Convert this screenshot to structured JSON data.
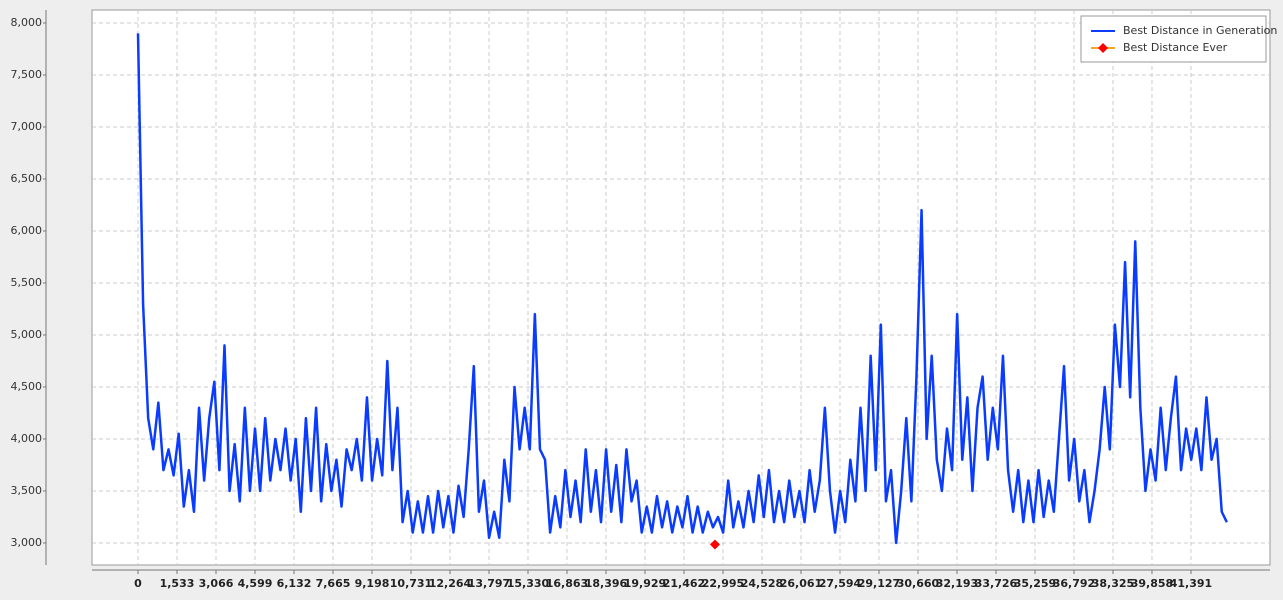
{
  "chart_data": {
    "type": "line",
    "x": [
      0,
      200,
      400,
      600,
      800,
      1000,
      1200,
      1400,
      1600,
      1800,
      2000,
      2200,
      2400,
      2600,
      2800,
      3000,
      3200,
      3400,
      3600,
      3800,
      4000,
      4200,
      4400,
      4600,
      4800,
      5000,
      5200,
      5400,
      5600,
      5800,
      6000,
      6200,
      6400,
      6600,
      6800,
      7000,
      7200,
      7400,
      7600,
      7800,
      8000,
      8200,
      8400,
      8600,
      8800,
      9000,
      9200,
      9400,
      9600,
      9800,
      10000,
      10200,
      10400,
      10600,
      10800,
      11000,
      11200,
      11400,
      11600,
      11800,
      12000,
      12200,
      12400,
      12600,
      12800,
      13000,
      13200,
      13400,
      13600,
      13800,
      14000,
      14200,
      14400,
      14600,
      14800,
      15000,
      15200,
      15400,
      15600,
      15800,
      16000,
      16200,
      16400,
      16600,
      16800,
      17000,
      17200,
      17400,
      17600,
      17800,
      18000,
      18200,
      18400,
      18600,
      18800,
      19000,
      19200,
      19400,
      19600,
      19800,
      20000,
      20200,
      20400,
      20600,
      20800,
      21000,
      21200,
      21400,
      21600,
      21800,
      22000,
      22200,
      22400,
      22600,
      22800,
      23000,
      23200,
      23400,
      23600,
      23800,
      24000,
      24200,
      24400,
      24600,
      24800,
      25000,
      25200,
      25400,
      25600,
      25800,
      26000,
      26200,
      26400,
      26600,
      26800,
      27000,
      27200,
      27400,
      27600,
      27800,
      28000,
      28200,
      28400,
      28600,
      28800,
      29000,
      29200,
      29400,
      29600,
      29800,
      30000,
      30200,
      30400,
      30600,
      30800,
      31000,
      31200,
      31400,
      31600,
      31800,
      32000,
      32200,
      32400,
      32600,
      32800,
      33000,
      33200,
      33400,
      33600,
      33800,
      34000,
      34200,
      34400,
      34600,
      34800,
      35000,
      35200,
      35400,
      35600,
      35800,
      36000,
      36200,
      36400,
      36600,
      36800,
      37000,
      37200,
      37400,
      37600,
      37800,
      38000,
      38200,
      38400,
      38600,
      38800,
      39000,
      39200,
      39400,
      39600,
      39800,
      40000,
      40200,
      40400,
      40600,
      40800,
      41000,
      41200,
      41400,
      41600,
      41800,
      42000,
      42200,
      42400,
      42600,
      42800
    ],
    "series": [
      {
        "name": "Best Distance in Generation",
        "color": "#0a3cff",
        "values": [
          7900,
          5300,
          4200,
          3900,
          4350,
          3700,
          3900,
          3650,
          4050,
          3350,
          3700,
          3300,
          4300,
          3600,
          4200,
          4550,
          3700,
          4900,
          3500,
          3950,
          3400,
          4300,
          3500,
          4100,
          3500,
          4200,
          3600,
          4000,
          3700,
          4100,
          3600,
          4000,
          3300,
          4200,
          3500,
          4300,
          3400,
          3950,
          3500,
          3800,
          3350,
          3900,
          3700,
          4000,
          3600,
          4400,
          3600,
          4000,
          3650,
          4750,
          3700,
          4300,
          3200,
          3500,
          3100,
          3400,
          3100,
          3450,
          3100,
          3500,
          3150,
          3450,
          3100,
          3550,
          3250,
          3900,
          4700,
          3300,
          3600,
          3050,
          3300,
          3050,
          3800,
          3400,
          4500,
          3900,
          4300,
          3900,
          5200,
          3900,
          3800,
          3100,
          3450,
          3150,
          3700,
          3250,
          3600,
          3200,
          3900,
          3300,
          3700,
          3200,
          3900,
          3300,
          3750,
          3200,
          3900,
          3400,
          3600,
          3100,
          3350,
          3100,
          3450,
          3150,
          3400,
          3100,
          3350,
          3150,
          3450,
          3100,
          3350,
          3100,
          3300,
          3150,
          3250,
          3100,
          3600,
          3150,
          3400,
          3150,
          3500,
          3200,
          3650,
          3250,
          3700,
          3200,
          3500,
          3200,
          3600,
          3250,
          3500,
          3200,
          3700,
          3300,
          3600,
          4300,
          3500,
          3100,
          3500,
          3200,
          3800,
          3400,
          4300,
          3500,
          4800,
          3700,
          5100,
          3400,
          3700,
          3000,
          3500,
          4200,
          3400,
          4600,
          6200,
          4000,
          4800,
          3800,
          3500,
          4100,
          3700,
          5200,
          3800,
          4400,
          3500,
          4300,
          4600,
          3800,
          4300,
          3900,
          4800,
          3700,
          3300,
          3700,
          3200,
          3600,
          3200,
          3700,
          3250,
          3600,
          3300,
          4000,
          4700,
          3600,
          4000,
          3400,
          3700,
          3200,
          3500,
          3900,
          4500,
          3900,
          5100,
          4500,
          5700,
          4400,
          5900,
          4300,
          3500,
          3900,
          3600,
          4300,
          3700,
          4200,
          4600,
          3700,
          4100,
          3800,
          4100,
          3700,
          4400,
          3800,
          4000,
          3300,
          3200
        ]
      },
      {
        "name": "Best Distance Ever",
        "color": "#ff0000",
        "x": [
          22680
        ],
        "values": [
          2985
        ]
      }
    ],
    "xlim": [
      -1808,
      44497
    ],
    "ylim": [
      2788,
      8125
    ],
    "xticks": [
      0,
      {
        "value": 1533,
        "label": "1,533"
      },
      {
        "value": 3066,
        "label": "3,066"
      },
      {
        "value": 4599,
        "label": "4,599"
      },
      {
        "value": 6132,
        "label": "6,132"
      },
      {
        "value": 7665,
        "label": "7,665"
      },
      {
        "value": 9198,
        "label": "9,198"
      },
      {
        "value": 10731,
        "label": "10,731"
      },
      {
        "value": 12264,
        "label": "12,264"
      },
      {
        "value": 13797,
        "label": "13,797"
      },
      {
        "value": 15330,
        "label": "15,330"
      },
      {
        "value": 16863,
        "label": "16,863"
      },
      {
        "value": 18396,
        "label": "18,396"
      },
      {
        "value": 19929,
        "label": "19,929"
      },
      {
        "value": 21462,
        "label": "21,462"
      },
      {
        "value": 22995,
        "label": "22,995"
      },
      {
        "value": 24528,
        "label": "24,528"
      },
      {
        "value": 26061,
        "label": "26,061"
      },
      {
        "value": 27594,
        "label": "27,594"
      },
      {
        "value": 29127,
        "label": "29,127"
      },
      {
        "value": 30660,
        "label": "30,660"
      },
      {
        "value": 32193,
        "label": "32,193"
      },
      {
        "value": 33726,
        "label": "33,726"
      },
      {
        "value": 35259,
        "label": "35,259"
      },
      {
        "value": 36792,
        "label": "36,792"
      },
      {
        "value": 38325,
        "label": "38,325"
      },
      {
        "value": 39858,
        "label": "39,858"
      },
      {
        "value": 41391,
        "label": "41,391"
      }
    ],
    "yticks": [
      {
        "value": 3000,
        "label": "3,000"
      },
      {
        "value": 3500,
        "label": "3,500"
      },
      {
        "value": 4000,
        "label": "4,000"
      },
      {
        "value": 4500,
        "label": "4,500"
      },
      {
        "value": 5000,
        "label": "5,000"
      },
      {
        "value": 5500,
        "label": "5,500"
      },
      {
        "value": 6000,
        "label": "6,000"
      },
      {
        "value": 6500,
        "label": "6,500"
      },
      {
        "value": 7000,
        "label": "7,000"
      },
      {
        "value": 7500,
        "label": "7,500"
      },
      {
        "value": 8000,
        "label": "8,000"
      }
    ],
    "grid": true,
    "legend": "top-right"
  }
}
